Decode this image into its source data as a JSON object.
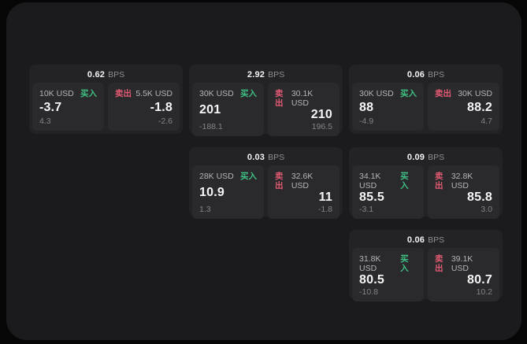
{
  "theme": {
    "background": "#060607",
    "panel": "#1b1b1d",
    "card": "#232326",
    "tile": "#2a2a2d",
    "buy_color": "#3fc183",
    "sell_color": "#e25a72",
    "value_color": "#f6f6f7",
    "muted_color": "#83838a"
  },
  "cards": [
    {
      "bps": "0.62",
      "unit": "BPS",
      "buy": {
        "amount": "10K USD",
        "label": "买入",
        "value": "-3.7",
        "sub": "4.3"
      },
      "sell": {
        "label": "卖出",
        "amount": "5.5K USD",
        "value": "-1.8",
        "sub": "-2.6"
      }
    },
    {
      "bps": "2.92",
      "unit": "BPS",
      "buy": {
        "amount": "30K USD",
        "label": "买入",
        "value": "201",
        "sub": "-188.1"
      },
      "sell": {
        "label": "卖出",
        "amount": "30.1K USD",
        "value": "210",
        "sub": "196.5"
      }
    },
    {
      "bps": "0.06",
      "unit": "BPS",
      "buy": {
        "amount": "30K USD",
        "label": "买入",
        "value": "88",
        "sub": "-4.9"
      },
      "sell": {
        "label": "卖出",
        "amount": "30K USD",
        "value": "88.2",
        "sub": "4.7"
      }
    },
    {
      "bps": "0.03",
      "unit": "BPS",
      "buy": {
        "amount": "28K USD",
        "label": "买入",
        "value": "10.9",
        "sub": "1.3"
      },
      "sell": {
        "label": "卖出",
        "amount": "32.6K USD",
        "value": "11",
        "sub": "-1.8"
      }
    },
    {
      "bps": "0.09",
      "unit": "BPS",
      "buy": {
        "amount": "34.1K USD",
        "label": "买入",
        "value": "85.5",
        "sub": "-3.1"
      },
      "sell": {
        "label": "卖出",
        "amount": "32.8K USD",
        "value": "85.8",
        "sub": "3.0"
      }
    },
    {
      "bps": "0.06",
      "unit": "BPS",
      "buy": {
        "amount": "31.8K USD",
        "label": "买入",
        "value": "80.5",
        "sub": "-10.8"
      },
      "sell": {
        "label": "卖出",
        "amount": "39.1K USD",
        "value": "80.7",
        "sub": "10.2"
      }
    }
  ]
}
